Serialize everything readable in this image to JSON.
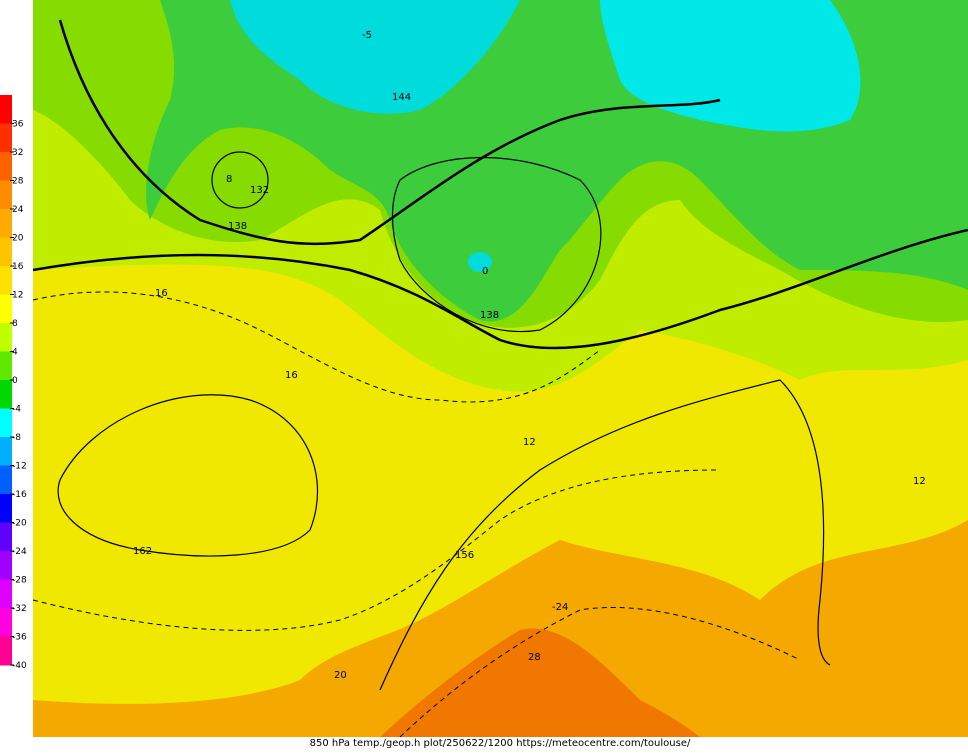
{
  "colorbar": {
    "labels": [
      36,
      32,
      28,
      24,
      20,
      16,
      12,
      8,
      4,
      0,
      -4,
      -8,
      -12,
      -16,
      -20,
      -24,
      -28,
      -32,
      -36,
      -40
    ],
    "colors": [
      "#ff0000",
      "#ff3000",
      "#ff6000",
      "#ff8c00",
      "#ffaa00",
      "#ffc400",
      "#ffe000",
      "#ffff00",
      "#c0ff00",
      "#60e800",
      "#00d800",
      "#00ffff",
      "#00b0ff",
      "#0060ff",
      "#0000ff",
      "#6000ff",
      "#a000ff",
      "#e000ff",
      "#ff00e0",
      "#ff0090"
    ]
  },
  "contour_labels": [
    "16",
    "16",
    "12",
    "138",
    "144",
    "132",
    "162",
    "0",
    "-24",
    "28",
    "20",
    "-5",
    "8",
    "156",
    "12",
    "138"
  ],
  "caption": "850 hPa temp./geop.h plot/250622/1200 https://meteocentre.com/toulouse/"
}
